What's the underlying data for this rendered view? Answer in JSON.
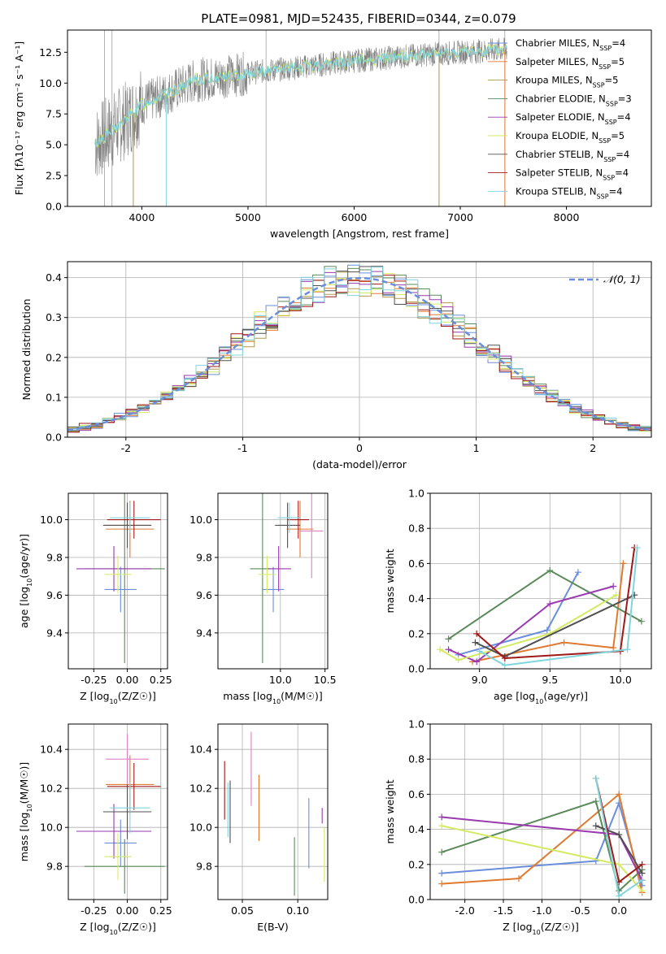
{
  "colors": {
    "chabrier_miles": "#6a8edb",
    "salpeter_miles": "#e07a30",
    "kroupa_miles": "#b09a4a",
    "chabrier_elodie": "#5a8a5a",
    "salpeter_elodie": "#9a3ab0",
    "kroupa_elodie": "#d4ea60",
    "chabrier_stelib": "#505050",
    "salpeter_stelib": "#a01818",
    "kroupa_stelib": "#80d4dc",
    "pink": "#e080c0",
    "normal": "#6a8edb",
    "spectrum": "#808080"
  },
  "chart_data": [
    {
      "id": "spectrum",
      "type": "line",
      "title": "PLATE=0981, MJD=52435, FIBERID=0344, z=0.079",
      "xlabel": "wavelength [Angstrom, rest frame]",
      "ylabel": "Flux [fλ10⁻¹⁷ erg cm⁻² s⁻¹ A⁻¹]",
      "xlim": [
        3300,
        8800
      ],
      "ylim": [
        0,
        14.3
      ],
      "xticks": [
        4000,
        5000,
        6000,
        7000,
        8000
      ],
      "yticks": [
        0.0,
        2.5,
        5.0,
        7.5,
        10.0,
        12.5
      ],
      "legend": [
        "Chabrier MILES, N_SSP=4",
        "Salpeter MILES, N_SSP=5",
        "Kroupa MILES, N_SSP=5",
        "Chabrier ELODIE, N_SSP=3",
        "Salpeter ELODIE, N_SSP=4",
        "Kroupa ELODIE, N_SSP=5",
        "Chabrier STELIB, N_SSP=4",
        "Salpeter STELIB, N_SSP=4",
        "Kroupa STELIB, N_SSP=4"
      ],
      "continuum": [
        [
          3550,
          5.0
        ],
        [
          3700,
          6.0
        ],
        [
          3850,
          7.0
        ],
        [
          4000,
          8.3
        ],
        [
          4200,
          9.0
        ],
        [
          4500,
          10.2
        ],
        [
          5000,
          10.8
        ],
        [
          5500,
          11.3
        ],
        [
          6000,
          11.8
        ],
        [
          6500,
          12.2
        ],
        [
          7000,
          12.5
        ],
        [
          7400,
          12.7
        ]
      ]
    },
    {
      "id": "residuals",
      "type": "bar",
      "xlabel": "(data-model)/error",
      "ylabel": "Normed distribution",
      "xlim": [
        -2.5,
        2.5
      ],
      "ylim": [
        0,
        0.44
      ],
      "xticks": [
        -2,
        -1,
        0,
        1,
        2
      ],
      "yticks": [
        0.0,
        0.1,
        0.2,
        0.3,
        0.4
      ],
      "legend": "𝒩(0, 1)",
      "bin_width": 0.1
    },
    {
      "id": "age-vs-Z",
      "type": "scatter",
      "xlabel": "Z [log10(Z/Z☉)]",
      "ylabel": "age  [log10(age/yr)]",
      "xlim": [
        -0.44,
        0.3
      ],
      "ylim": [
        9.21,
        10.14
      ],
      "xticks": [
        -0.25,
        0.0,
        0.25
      ],
      "yticks": [
        9.4,
        9.6,
        9.8,
        10.0
      ],
      "points": [
        {
          "series": "chabrier_miles",
          "x": -0.05,
          "xerr": 0.12,
          "y": 9.63,
          "yerr": 0.12
        },
        {
          "series": "salpeter_miles",
          "x": 0.02,
          "xerr": 0.18,
          "y": 9.95,
          "yerr": 0.15
        },
        {
          "series": "kroupa_miles",
          "x": 0.0,
          "xerr": 0.17,
          "y": 9.97,
          "yerr": 0.12
        },
        {
          "series": "chabrier_elodie",
          "x": -0.02,
          "xerr": 0.3,
          "y": 9.74,
          "yerr": 0.5
        },
        {
          "series": "salpeter_elodie",
          "x": -0.1,
          "xerr": 0.28,
          "y": 9.74,
          "yerr": 0.12
        },
        {
          "series": "kroupa_elodie",
          "x": -0.07,
          "xerr": 0.1,
          "y": 9.71,
          "yerr": 0.1
        },
        {
          "series": "chabrier_stelib",
          "x": 0.0,
          "xerr": 0.18,
          "y": 9.97,
          "yerr": 0.12
        },
        {
          "series": "salpeter_stelib",
          "x": 0.05,
          "xerr": 0.2,
          "y": 10.0,
          "yerr": 0.1
        },
        {
          "series": "kroupa_stelib",
          "x": 0.02,
          "xerr": 0.15,
          "y": 10.01,
          "yerr": 0.08
        }
      ]
    },
    {
      "id": "age-vs-mass",
      "type": "scatter",
      "xlabel": "mass [log10(M/M☉)]",
      "ylabel": "",
      "xlim": [
        9.3,
        10.53
      ],
      "ylim": [
        9.21,
        10.14
      ],
      "xticks": [
        10.0,
        10.5
      ],
      "yticks": [
        9.4,
        9.6,
        9.8,
        10.0
      ],
      "points": [
        {
          "series": "chabrier_miles",
          "x": 9.92,
          "xerr": 0.12,
          "y": 9.63,
          "yerr": 0.12
        },
        {
          "series": "salpeter_miles",
          "x": 10.22,
          "xerr": 0.15,
          "y": 9.95,
          "yerr": 0.15
        },
        {
          "series": "pink",
          "x": 10.35,
          "xerr": 0.13,
          "y": 9.94,
          "yerr": 0.25
        },
        {
          "series": "chabrier_elodie",
          "x": 9.8,
          "xerr": 0.14,
          "y": 9.74,
          "yerr": 0.5
        },
        {
          "series": "salpeter_elodie",
          "x": 9.98,
          "xerr": 0.14,
          "y": 9.74,
          "yerr": 0.12
        },
        {
          "series": "kroupa_elodie",
          "x": 9.85,
          "xerr": 0.1,
          "y": 9.71,
          "yerr": 0.1
        },
        {
          "series": "chabrier_stelib",
          "x": 10.08,
          "xerr": 0.14,
          "y": 9.97,
          "yerr": 0.12
        },
        {
          "series": "salpeter_stelib",
          "x": 10.2,
          "xerr": 0.12,
          "y": 10.0,
          "yerr": 0.1
        },
        {
          "series": "kroupa_stelib",
          "x": 10.1,
          "xerr": 0.13,
          "y": 10.01,
          "yerr": 0.08
        }
      ]
    },
    {
      "id": "weight-vs-age",
      "type": "line",
      "xlabel": "age  [log10(age/yr)]",
      "ylabel": "mass weight",
      "xlim": [
        8.65,
        10.22
      ],
      "ylim": [
        0,
        1.0
      ],
      "xticks": [
        9.0,
        9.5,
        10.0
      ],
      "yticks": [
        0.0,
        0.2,
        0.4,
        0.6,
        0.8,
        1.0
      ],
      "series": [
        {
          "series": "chabrier_miles",
          "x": [
            8.85,
            9.48,
            9.7
          ],
          "y": [
            0.08,
            0.22,
            0.55
          ]
        },
        {
          "series": "salpeter_miles",
          "x": [
            8.95,
            9.6,
            9.95,
            10.02
          ],
          "y": [
            0.04,
            0.15,
            0.12,
            0.6
          ]
        },
        {
          "series": "chabrier_elodie",
          "x": [
            8.78,
            9.5,
            10.15
          ],
          "y": [
            0.17,
            0.56,
            0.27
          ]
        },
        {
          "series": "salpeter_elodie",
          "x": [
            8.78,
            8.98,
            9.5,
            9.95
          ],
          "y": [
            0.11,
            0.04,
            0.37,
            0.47
          ]
        },
        {
          "series": "kroupa_elodie",
          "x": [
            8.72,
            8.85,
            9.5,
            9.97
          ],
          "y": [
            0.11,
            0.05,
            0.2,
            0.42
          ]
        },
        {
          "series": "chabrier_stelib",
          "x": [
            8.97,
            9.18,
            10.1
          ],
          "y": [
            0.15,
            0.07,
            0.42
          ]
        },
        {
          "series": "salpeter_stelib",
          "x": [
            8.98,
            9.18,
            10.0,
            10.1
          ],
          "y": [
            0.2,
            0.06,
            0.1,
            0.69
          ]
        },
        {
          "series": "kroupa_stelib",
          "x": [
            9.0,
            9.18,
            10.05,
            10.12
          ],
          "y": [
            0.1,
            0.02,
            0.11,
            0.69
          ]
        }
      ]
    },
    {
      "id": "mass-vs-Z",
      "type": "scatter",
      "xlabel": "Z [log10(Z/Z☉)]",
      "ylabel": "mass [log10(M/M☉)]",
      "xlim": [
        -0.44,
        0.3
      ],
      "ylim": [
        9.63,
        10.53
      ],
      "xticks": [
        -0.25,
        0.0,
        0.25
      ],
      "yticks": [
        9.8,
        10.0,
        10.2,
        10.4
      ],
      "points": [
        {
          "series": "chabrier_miles",
          "x": -0.05,
          "xerr": 0.12,
          "y": 9.92,
          "yerr": 0.12
        },
        {
          "series": "salpeter_miles",
          "x": 0.02,
          "xerr": 0.18,
          "y": 10.22,
          "yerr": 0.15
        },
        {
          "series": "pink",
          "x": 0.0,
          "xerr": 0.16,
          "y": 10.35,
          "yerr": 0.13
        },
        {
          "series": "chabrier_elodie",
          "x": -0.02,
          "xerr": 0.3,
          "y": 9.8,
          "yerr": 0.14
        },
        {
          "series": "salpeter_elodie",
          "x": -0.1,
          "xerr": 0.28,
          "y": 9.98,
          "yerr": 0.14
        },
        {
          "series": "kroupa_elodie",
          "x": -0.07,
          "xerr": 0.1,
          "y": 9.85,
          "yerr": 0.12
        },
        {
          "series": "chabrier_stelib",
          "x": 0.0,
          "xerr": 0.18,
          "y": 10.08,
          "yerr": 0.14
        },
        {
          "series": "salpeter_stelib",
          "x": 0.05,
          "xerr": 0.2,
          "y": 10.21,
          "yerr": 0.12
        },
        {
          "series": "kroupa_stelib",
          "x": 0.02,
          "xerr": 0.15,
          "y": 10.1,
          "yerr": 0.13
        }
      ]
    },
    {
      "id": "mass-vs-ebv",
      "type": "scatter",
      "xlabel": "E(B-V)",
      "ylabel": "",
      "xlim": [
        0.028,
        0.127
      ],
      "ylim": [
        9.63,
        10.53
      ],
      "xticks": [
        0.05,
        0.1
      ],
      "yticks": [
        9.8,
        10.0,
        10.2,
        10.4
      ],
      "points": [
        {
          "series": "salpeter_stelib",
          "x": 0.034,
          "xerr": 0,
          "y": 10.19,
          "yerr": 0.15
        },
        {
          "series": "kroupa_stelib",
          "x": 0.037,
          "xerr": 0,
          "y": 10.09,
          "yerr": 0.14
        },
        {
          "series": "chabrier_stelib",
          "x": 0.039,
          "xerr": 0,
          "y": 10.08,
          "yerr": 0.16
        },
        {
          "series": "pink",
          "x": 0.058,
          "xerr": 0,
          "y": 10.3,
          "yerr": 0.19
        },
        {
          "series": "salpeter_miles",
          "x": 0.065,
          "xerr": 0,
          "y": 10.1,
          "yerr": 0.17
        },
        {
          "series": "chabrier_elodie",
          "x": 0.097,
          "xerr": 0,
          "y": 9.8,
          "yerr": 0.15
        },
        {
          "series": "chabrier_miles",
          "x": 0.11,
          "xerr": 0,
          "y": 9.97,
          "yerr": 0.18
        },
        {
          "series": "salpeter_elodie",
          "x": 0.122,
          "xerr": 0,
          "y": 10.06,
          "yerr": 0.04
        },
        {
          "series": "kroupa_elodie",
          "x": 0.124,
          "xerr": 0,
          "y": 9.86,
          "yerr": 0.14
        }
      ]
    },
    {
      "id": "weight-vs-Z",
      "type": "line",
      "xlabel": "Z [log10(Z/Z☉)]",
      "ylabel": "mass weight",
      "xlim": [
        -2.45,
        0.42
      ],
      "ylim": [
        0,
        1.0
      ],
      "xticks": [
        -2.0,
        -1.5,
        -1.0,
        -0.5,
        0.0
      ],
      "yticks": [
        0.0,
        0.2,
        0.4,
        0.6,
        0.8,
        1.0
      ],
      "series": [
        {
          "series": "chabrier_miles",
          "x": [
            -2.3,
            -0.3,
            0.0,
            0.3
          ],
          "y": [
            0.15,
            0.22,
            0.55,
            0.08
          ]
        },
        {
          "series": "salpeter_miles",
          "x": [
            -2.3,
            -1.3,
            0.0,
            0.3
          ],
          "y": [
            0.09,
            0.12,
            0.6,
            0.04
          ]
        },
        {
          "series": "chabrier_elodie",
          "x": [
            -2.3,
            -0.3,
            0.0,
            0.3
          ],
          "y": [
            0.27,
            0.56,
            0.05,
            0.17
          ]
        },
        {
          "series": "salpeter_elodie",
          "x": [
            -2.3,
            0.0,
            0.3
          ],
          "y": [
            0.47,
            0.37,
            0.11
          ]
        },
        {
          "series": "kroupa_elodie",
          "x": [
            -2.3,
            0.0,
            0.3
          ],
          "y": [
            0.42,
            0.2,
            0.05
          ]
        },
        {
          "series": "chabrier_stelib",
          "x": [
            -0.3,
            0.0,
            0.3
          ],
          "y": [
            0.42,
            0.37,
            0.15
          ]
        },
        {
          "series": "salpeter_stelib",
          "x": [
            -0.3,
            0.0,
            0.3
          ],
          "y": [
            0.69,
            0.1,
            0.2
          ]
        },
        {
          "series": "kroupa_stelib",
          "x": [
            -0.3,
            0.0,
            0.3
          ],
          "y": [
            0.69,
            0.02,
            0.11
          ]
        }
      ]
    }
  ]
}
